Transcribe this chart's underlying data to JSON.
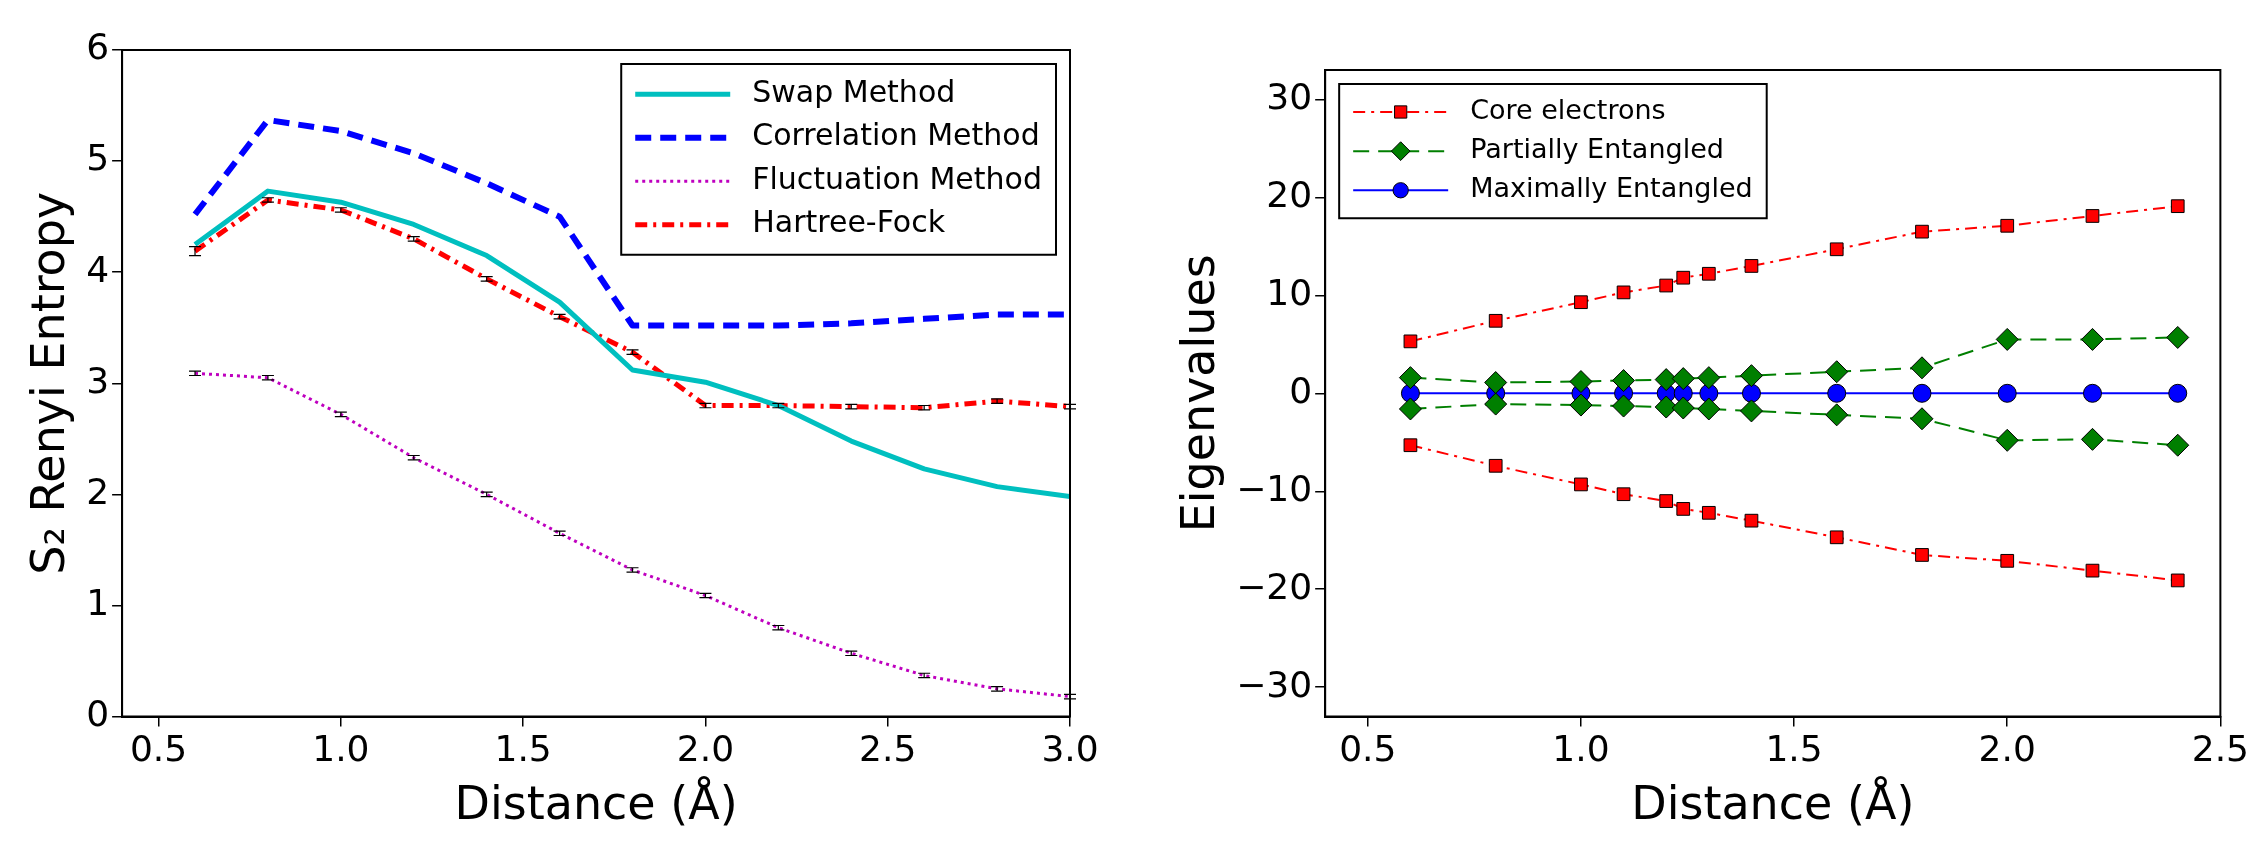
{
  "chart_data": [
    {
      "type": "line",
      "xlabel": "Distance (Å)",
      "ylabel": "S₂ Renyi Entropy",
      "x": [
        0.6,
        0.8,
        1.0,
        1.2,
        1.4,
        1.6,
        1.8,
        2.0,
        2.2,
        2.4,
        2.6,
        2.8,
        3.0
      ],
      "xlim": [
        0.4,
        3.0
      ],
      "ylim": [
        0,
        6
      ],
      "xticks": [
        0.5,
        {
          "value": 1,
          "label": "1.0"
        },
        1.5,
        {
          "value": 2,
          "label": "2.0"
        },
        2.5,
        {
          "value": 3,
          "label": "3.0"
        }
      ],
      "yticks": [
        0,
        1,
        2,
        3,
        4,
        5,
        6
      ],
      "legend": "top right",
      "grid": false,
      "marker": "none",
      "series": [
        {
          "name": "Swap Method",
          "color": "#00bfbf",
          "line_style": "solid",
          "values": [
            4.25,
            4.73,
            4.63,
            4.43,
            4.15,
            3.73,
            3.12,
            3.01,
            2.8,
            2.48,
            2.23,
            2.07,
            1.98
          ]
        },
        {
          "name": "Correlation Method",
          "color": "#0000ff",
          "line_style": "dashed",
          "values": [
            4.52,
            5.37,
            5.27,
            5.07,
            4.8,
            4.5,
            3.52,
            3.52,
            3.52,
            3.54,
            3.58,
            3.62,
            3.62
          ]
        },
        {
          "name": "Fluctuation Method",
          "color": "#bf00bf",
          "line_style": "dotted",
          "values": [
            3.09,
            3.05,
            2.72,
            2.33,
            2.0,
            1.65,
            1.32,
            1.09,
            0.8,
            0.57,
            0.37,
            0.25,
            0.18
          ],
          "errors": [
            0.02,
            0.02,
            0.02,
            0.02,
            0.02,
            0.02,
            0.02,
            0.02,
            0.02,
            0.02,
            0.02,
            0.02,
            0.02
          ]
        },
        {
          "name": "Hartree-Fock",
          "color": "#ff0000",
          "line_style": "dashdot",
          "values": [
            4.19,
            4.65,
            4.56,
            4.3,
            3.94,
            3.6,
            3.28,
            2.8,
            2.8,
            2.79,
            2.78,
            2.84,
            2.79
          ],
          "errors": [
            0.04,
            0.02,
            0.02,
            0.02,
            0.02,
            0.02,
            0.02,
            0.02,
            0.02,
            0.02,
            0.02,
            0.02,
            0.02
          ]
        }
      ]
    },
    {
      "type": "line",
      "xlabel": "Distance (Å)",
      "ylabel": "Eigenvalues",
      "x": [
        0.6,
        0.8,
        1.0,
        1.1,
        1.2,
        1.24,
        1.3,
        1.4,
        1.6,
        1.8,
        2.0,
        2.2,
        2.4
      ],
      "xlim": [
        0.4,
        2.5
      ],
      "ylim": [
        -33,
        33
      ],
      "xticks": [
        0.5,
        {
          "value": 1,
          "label": "1.0"
        },
        1.5,
        {
          "value": 2,
          "label": "2.0"
        },
        2.5
      ],
      "yticks": [
        -30,
        -20,
        -10,
        0,
        10,
        20,
        30
      ],
      "legend": "top left",
      "grid": false,
      "series": [
        {
          "name": "Core electrons",
          "color": "#ff0000",
          "line_style": "dashdot",
          "marker": "square",
          "values": [
            5.3,
            7.4,
            9.3,
            10.3,
            11.0,
            11.8,
            12.2,
            13.0,
            14.7,
            16.5,
            17.1,
            18.1,
            19.1
          ]
        },
        {
          "color": "#ff0000",
          "line_style": "dashdot",
          "marker": "square",
          "values": [
            -5.3,
            -7.4,
            -9.3,
            -10.3,
            -11.0,
            -11.8,
            -12.2,
            -13.0,
            -14.7,
            -16.5,
            -17.1,
            -18.1,
            -19.1
          ]
        },
        {
          "name": "Partially Entangled",
          "color": "#007f00",
          "line_style": "dashed",
          "marker": "diamond",
          "values": [
            1.6,
            1.1,
            1.2,
            1.3,
            1.4,
            1.5,
            1.6,
            1.8,
            2.2,
            2.6,
            5.5,
            5.5,
            5.7
          ]
        },
        {
          "color": "#007f00",
          "line_style": "dashed",
          "marker": "diamond",
          "values": [
            -1.6,
            -1.1,
            -1.2,
            -1.3,
            -1.4,
            -1.5,
            -1.6,
            -1.8,
            -2.2,
            -2.6,
            -4.8,
            -4.7,
            -5.3
          ]
        },
        {
          "name": "Maximally Entangled",
          "color": "#0000ff",
          "line_style": "solid",
          "marker": "circle",
          "values": [
            0,
            0,
            0,
            0,
            0,
            0,
            0,
            0,
            0,
            0,
            0,
            0,
            0
          ]
        }
      ]
    }
  ]
}
